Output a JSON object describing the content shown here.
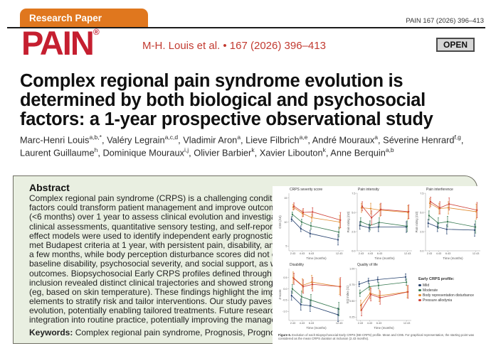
{
  "header": {
    "category_tab": "Research Paper",
    "journal_ref_small": "PAIN 167 (2026) 396–413",
    "logo_text": "PAIN",
    "logo_reg": "®",
    "byline": "M-H. Louis et al. • 167 (2026) 396–413",
    "open_badge": "OPEN",
    "tab_color": "#E0771E",
    "logo_color": "#C51F30",
    "byline_color": "#C23A30"
  },
  "title_lines": [
    "Complex regional pain syndrome evolution is",
    "determined by both biological and psychosocial",
    "factors: a 1-year prospective observational study"
  ],
  "authors": [
    {
      "name": "Marc-Henri Louis",
      "sup": "a,b,*"
    },
    {
      "name": "Valéry Legrain",
      "sup": "a,c,d"
    },
    {
      "name": "Vladimir Aron",
      "sup": "a"
    },
    {
      "name": "Lieve Filbrich",
      "sup": "a,e"
    },
    {
      "name": "André Mouraux",
      "sup": "a"
    },
    {
      "name": "Séverine Henrard",
      "sup": "f,g"
    },
    {
      "name": "Laurent Guillaume",
      "sup": "h"
    },
    {
      "name": "Dominique Mouraux",
      "sup": "i,j"
    },
    {
      "name": "Olivier Barbier",
      "sup": "k"
    },
    {
      "name": "Xavier Libouton",
      "sup": "k"
    },
    {
      "name": "Anne Berquin",
      "sup": "a,b"
    }
  ],
  "abstract": {
    "heading": "Abstract",
    "box_color": "#E9EFE1",
    "lines": [
      "Complex regional pain syndrome (CRPS) is a challenging condition with un",
      "factors could transform patient management and improve outcomes. This",
      "(<6 months) over 1 year to assess clinical evolution and investigate key pre",
      "clinical assessments, quantitative sensory testing, and self-reported evalu",
      "effect models were used to identify independent early prognostic factors.",
      "met Budapest criteria at 1 year, with persistent pain, disability, and impaire",
      "a few months, while body perception disturbance scores did not change c",
      "baseline disability, psychosocial severity, and social support, as well as bo",
      "outcomes. Biopsychosocial Early CRPS profiles defined through a latent c",
      "inclusion revealed distinct clinical trajectories and showed stronger progno",
      "(eg, based on skin temperature). These findings highlight the importanc",
      "elements to stratify risk and tailor interventions. Our study paves the wa",
      "evolution, potentially enabling tailored treatments. Future research sho",
      "integration into routine practice, potentially improving the management o"
    ],
    "keywords_label": "Keywords:",
    "keywords_text": " Complex regional pain syndrome, Prognosis, Prognostic fa"
  },
  "figure": {
    "legend_title": "Early CRPS profile:",
    "legend_items": [
      {
        "label": "Mild",
        "color": "#24406E"
      },
      {
        "label": "Moderate",
        "color": "#34784F"
      },
      {
        "label": "Body representation disturbance",
        "color": "#E08A2E"
      },
      {
        "label": "Pressure allodynia",
        "color": "#CE4036"
      }
    ],
    "caption_label": "Figure 6.",
    "caption_text": " Evolution of each Biopsychosocial Early CRPS (BE-CRPS) profile. Mean and CI95. For graphical representation, the starting point was considered as the mean CRPS duration at inclusion (2.43 months)."
  },
  "chart_data": [
    {
      "type": "line",
      "title": "CRPS severity score",
      "xlabel": "Time (months)",
      "ylabel": "CSS (/16)",
      "x": [
        2.43,
        4.43,
        6.43,
        12.43
      ],
      "x_labels": [
        "2.43",
        "4.43",
        "6.43",
        "12.43"
      ],
      "xlim": [
        1.6,
        13.4
      ],
      "ylim": [
        4,
        16
      ],
      "yticks": [
        5,
        10,
        15
      ],
      "ytick_labels": [
        "5",
        "10",
        "15"
      ],
      "series": [
        {
          "name": "Mild",
          "color": "#24406E",
          "values": [
            10.6,
            8.6,
            7.6,
            6.3
          ],
          "err": [
            0.5,
            0.6,
            0.7,
            1.1
          ]
        },
        {
          "name": "Moderate",
          "color": "#34784F",
          "values": [
            11.6,
            10.0,
            9.2,
            7.9
          ],
          "err": [
            0.5,
            0.6,
            0.7,
            1.0
          ]
        },
        {
          "name": "Body representation disturbance",
          "color": "#E08A2E",
          "values": [
            13.1,
            11.8,
            10.9,
            10.0
          ],
          "err": [
            0.6,
            0.7,
            0.8,
            1.4
          ]
        },
        {
          "name": "Pressure allodynia",
          "color": "#CE4036",
          "values": [
            13.3,
            12.0,
            12.1,
            10.4
          ],
          "err": [
            0.7,
            0.8,
            0.9,
            1.6
          ]
        }
      ]
    },
    {
      "type": "line",
      "title": "Pain intensity",
      "xlabel": "Time (months)",
      "ylabel": "Pain rating (/10)",
      "x": [
        2.43,
        4.43,
        6.43,
        12.43
      ],
      "x_labels": [
        "2.43",
        "4.43",
        "6.43",
        "12.43"
      ],
      "xlim": [
        1.6,
        13.4
      ],
      "ylim": [
        0,
        7.5
      ],
      "yticks": [
        0,
        2.5,
        5,
        7.5
      ],
      "ytick_labels": [
        "0.0",
        "2.5",
        "5.0",
        "7.5"
      ],
      "series": [
        {
          "name": "Mild",
          "color": "#24406E",
          "values": [
            3.3,
            3.0,
            3.1,
            3.1
          ],
          "err": [
            0.5,
            0.5,
            0.6,
            0.7
          ]
        },
        {
          "name": "Moderate",
          "color": "#34784F",
          "values": [
            3.8,
            3.3,
            3.7,
            3.2
          ],
          "err": [
            0.5,
            0.6,
            0.6,
            0.7
          ]
        },
        {
          "name": "Body representation disturbance",
          "color": "#E08A2E",
          "values": [
            5.6,
            5.5,
            5.3,
            5.0
          ],
          "err": [
            0.6,
            0.7,
            0.8,
            0.9
          ]
        },
        {
          "name": "Pressure allodynia",
          "color": "#CE4036",
          "values": [
            5.8,
            4.3,
            5.4,
            5.1
          ],
          "err": [
            0.6,
            0.9,
            0.8,
            0.9
          ]
        }
      ]
    },
    {
      "type": "line",
      "title": "Pain interference",
      "xlabel": "Time (months)",
      "ylabel": "Pain rating (/10)",
      "x": [
        2.43,
        4.43,
        6.43,
        12.43
      ],
      "x_labels": [
        "2.43",
        "4.43",
        "6.43",
        "12.43"
      ],
      "xlim": [
        1.6,
        13.4
      ],
      "ylim": [
        0,
        7.5
      ],
      "yticks": [
        0,
        2.5,
        5,
        7.5
      ],
      "ytick_labels": [
        "0.0",
        "2.5",
        "5.0",
        "7.5"
      ],
      "series": [
        {
          "name": "Mild",
          "color": "#24406E",
          "values": [
            3.6,
            3.1,
            2.8,
            2.7
          ],
          "err": [
            0.5,
            0.6,
            0.6,
            0.8
          ]
        },
        {
          "name": "Moderate",
          "color": "#34784F",
          "values": [
            4.6,
            3.6,
            3.8,
            3.1
          ],
          "err": [
            0.6,
            0.7,
            0.7,
            0.8
          ]
        },
        {
          "name": "Body representation disturbance",
          "color": "#E08A2E",
          "values": [
            6.2,
            5.5,
            5.6,
            5.1
          ],
          "err": [
            0.6,
            0.7,
            0.8,
            1.0
          ]
        },
        {
          "name": "Pressure allodynia",
          "color": "#CE4036",
          "values": [
            6.4,
            5.6,
            6.1,
            5.3
          ],
          "err": [
            0.6,
            0.8,
            0.8,
            1.0
          ]
        }
      ]
    },
    {
      "type": "line",
      "title": "Disability",
      "xlabel": "Time (months)",
      "ylabel": "Z-score",
      "x": [
        2.43,
        4.43,
        6.43,
        12.43
      ],
      "x_labels": [
        "2.43",
        "4.43",
        "6.43",
        "12.43"
      ],
      "xlim": [
        1.6,
        13.4
      ],
      "ylim": [
        -1.4,
        0.9
      ],
      "yticks": [
        -1.0,
        -0.5,
        0.0,
        0.5
      ],
      "ytick_labels": [
        "-1.0",
        "-0.5",
        "0.0",
        "0.5"
      ],
      "series": [
        {
          "name": "Mild",
          "color": "#24406E",
          "values": [
            -0.3,
            -0.7,
            -0.75,
            -1.15
          ],
          "err": [
            0.2,
            0.25,
            0.25,
            0.3
          ]
        },
        {
          "name": "Moderate",
          "color": "#34784F",
          "values": [
            0.0,
            -0.35,
            -0.5,
            -0.9
          ],
          "err": [
            0.2,
            0.25,
            0.25,
            0.3
          ]
        },
        {
          "name": "Body representation disturbance",
          "color": "#E08A2E",
          "values": [
            0.5,
            0.15,
            0.3,
            0.1
          ],
          "err": [
            0.25,
            0.3,
            0.3,
            0.35
          ]
        },
        {
          "name": "Pressure allodynia",
          "color": "#CE4036",
          "values": [
            0.45,
            0.1,
            0.2,
            0.1
          ],
          "err": [
            0.25,
            0.3,
            0.3,
            0.4
          ]
        }
      ]
    },
    {
      "type": "line",
      "title": "Quality of life",
      "xlabel": "Time (months)",
      "ylabel": "EQ index (/1)",
      "x": [
        2.43,
        4.43,
        6.43,
        12.43
      ],
      "x_labels": [
        "2.43",
        "4.43",
        "6.43",
        "12.43"
      ],
      "xlim": [
        1.6,
        13.4
      ],
      "ylim": [
        0.2,
        1.0
      ],
      "yticks": [
        0.25,
        0.5,
        0.75,
        1.0
      ],
      "ytick_labels": [
        "0.25",
        "0.50",
        "0.75",
        "1.00"
      ],
      "series": [
        {
          "name": "Mild",
          "color": "#24406E",
          "values": [
            0.76,
            0.81,
            0.83,
            0.87
          ],
          "err": [
            0.04,
            0.04,
            0.04,
            0.05
          ]
        },
        {
          "name": "Moderate",
          "color": "#34784F",
          "values": [
            0.62,
            0.72,
            0.74,
            0.79
          ],
          "err": [
            0.05,
            0.05,
            0.05,
            0.05
          ]
        },
        {
          "name": "Body representation disturbance",
          "color": "#E08A2E",
          "values": [
            0.43,
            0.62,
            0.58,
            0.64
          ],
          "err": [
            0.08,
            0.09,
            0.09,
            0.09
          ]
        },
        {
          "name": "Pressure allodynia",
          "color": "#CE4036",
          "values": [
            0.36,
            0.6,
            0.55,
            0.64
          ],
          "err": [
            0.09,
            0.1,
            0.1,
            0.1
          ]
        }
      ]
    }
  ]
}
